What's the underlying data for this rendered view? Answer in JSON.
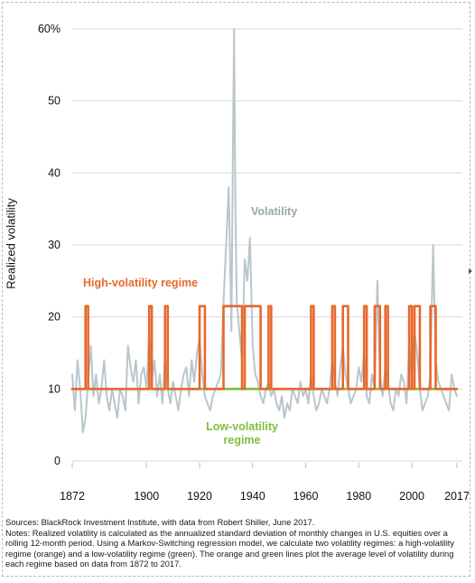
{
  "chart_data": {
    "type": "line",
    "title": "",
    "xlabel": "",
    "ylabel": "Realized volatility",
    "xlim": [
      1872,
      2017
    ],
    "ylim": [
      0,
      60
    ],
    "x_ticks": [
      "1872",
      "1900",
      "1920",
      "1940",
      "1960",
      "1980",
      "2000",
      "2017"
    ],
    "y_ticks": [
      "0",
      "10",
      "20",
      "30",
      "40",
      "50",
      "60%"
    ],
    "grid": "horizontal",
    "colors": {
      "volatility": "#b9c6cc",
      "high": "#e8682c",
      "low": "#7dbf3b",
      "grid": "#d9d9d9"
    },
    "annotations": {
      "volatility": "Volatility",
      "high": "High-volatility regime",
      "low_line1": "Low-volatility",
      "low_line2": "regime"
    },
    "series": [
      {
        "name": "Volatility",
        "x": [
          1872,
          1873,
          1874,
          1875,
          1876,
          1877,
          1878,
          1879,
          1880,
          1881,
          1882,
          1883,
          1884,
          1885,
          1886,
          1887,
          1888,
          1889,
          1890,
          1891,
          1892,
          1893,
          1894,
          1895,
          1896,
          1897,
          1898,
          1899,
          1900,
          1901,
          1902,
          1903,
          1904,
          1905,
          1906,
          1907,
          1908,
          1909,
          1910,
          1911,
          1912,
          1913,
          1914,
          1915,
          1916,
          1917,
          1918,
          1919,
          1920,
          1921,
          1922,
          1923,
          1924,
          1925,
          1926,
          1927,
          1928,
          1929,
          1930,
          1931,
          1932,
          1932.5,
          1933,
          1933.5,
          1934,
          1935,
          1936,
          1937,
          1938,
          1939,
          1940,
          1941,
          1942,
          1943,
          1944,
          1945,
          1946,
          1947,
          1948,
          1949,
          1950,
          1951,
          1952,
          1953,
          1954,
          1955,
          1956,
          1957,
          1958,
          1959,
          1960,
          1961,
          1962,
          1963,
          1964,
          1965,
          1966,
          1967,
          1968,
          1969,
          1970,
          1971,
          1972,
          1973,
          1974,
          1975,
          1976,
          1977,
          1978,
          1979,
          1980,
          1981,
          1982,
          1983,
          1984,
          1985,
          1986,
          1987,
          1988,
          1989,
          1990,
          1991,
          1992,
          1993,
          1994,
          1995,
          1996,
          1997,
          1998,
          1999,
          2000,
          2001,
          2002,
          2003,
          2004,
          2005,
          2006,
          2007,
          2008,
          2009,
          2010,
          2011,
          2012,
          2013,
          2014,
          2015,
          2016,
          2017
        ],
        "values": [
          12,
          7,
          14,
          10,
          4,
          6,
          11,
          16,
          9,
          12,
          8,
          10,
          14,
          9,
          7,
          10,
          8,
          6,
          10,
          9,
          7,
          16,
          13,
          11,
          14,
          8,
          12,
          13,
          10,
          18,
          11,
          14,
          9,
          12,
          8,
          15,
          10,
          8,
          11,
          9,
          7,
          10,
          12,
          13,
          9,
          14,
          11,
          15,
          17,
          12,
          9,
          8,
          7,
          9,
          10,
          11,
          12,
          22,
          30,
          38,
          18,
          40,
          60,
          35,
          22,
          18,
          14,
          28,
          25,
          31,
          16,
          12,
          11,
          9,
          8,
          10,
          11,
          9,
          10,
          8,
          7,
          9,
          6,
          8,
          7,
          10,
          9,
          8,
          11,
          9,
          10,
          8,
          12,
          9,
          7,
          8,
          10,
          9,
          8,
          10,
          14,
          11,
          9,
          13,
          16,
          12,
          10,
          8,
          9,
          10,
          13,
          11,
          15,
          9,
          8,
          12,
          10,
          25,
          12,
          9,
          13,
          11,
          8,
          7,
          10,
          9,
          12,
          11,
          8,
          16,
          12,
          18,
          15,
          10,
          7,
          8,
          9,
          12,
          30,
          14,
          11,
          10,
          9,
          8,
          7,
          12,
          10,
          9
        ]
      },
      {
        "name": "High-volatility regime",
        "x": [
          1872,
          1877,
          1877,
          1878,
          1878,
          1901,
          1901,
          1902,
          1902,
          1907,
          1907,
          1908,
          1908,
          1920,
          1920,
          1922,
          1922,
          1929,
          1929,
          1936,
          1936,
          1937,
          1937,
          1938,
          1938,
          1943,
          1943,
          1946,
          1946,
          1947,
          1947,
          1962,
          1962,
          1963,
          1963,
          1970,
          1970,
          1971,
          1971,
          1974,
          1974,
          1976,
          1976,
          1982,
          1982,
          1983,
          1983,
          1986,
          1986,
          1988,
          1988,
          1990,
          1990,
          1991,
          1991,
          1999,
          1999,
          2000,
          2000,
          2001,
          2001,
          2003,
          2003,
          2007,
          2007,
          2009,
          2009,
          2017
        ],
        "values": [
          10,
          10,
          21.5,
          21.5,
          10,
          10,
          21.5,
          21.5,
          10,
          10,
          21.5,
          21.5,
          10,
          10,
          21.5,
          21.5,
          10,
          10,
          21.5,
          21.5,
          10,
          10,
          21.5,
          21.5,
          21.5,
          21.5,
          10,
          10,
          21.5,
          21.5,
          10,
          10,
          21.5,
          21.5,
          10,
          10,
          21.5,
          21.5,
          10,
          10,
          21.5,
          21.5,
          10,
          10,
          21.5,
          21.5,
          10,
          10,
          21.5,
          21.5,
          10,
          10,
          21.5,
          21.5,
          10,
          10,
          21.5,
          21.5,
          10,
          10,
          21.5,
          21.5,
          10,
          10,
          21.5,
          21.5,
          10,
          10
        ]
      },
      {
        "name": "Low-volatility regime",
        "x": [
          1872,
          2017
        ],
        "values": [
          10,
          10
        ]
      }
    ]
  },
  "notes": {
    "sources": "Sources: BlackRock Investment Institute, with data from Robert Shiller, June 2017.",
    "text": "Notes: Realized volatility is calculated as the annualized standard deviation of monthly changes in U.S. equities over a rolling 12-month period. Using a Markov-Switching regression model, we calculate two volatility regimes: a high-volatility regime (orange) and a low-volatility regime (green). The orange and green lines plot the average level of volatility during each regime based on data from 1872 to 2017."
  }
}
